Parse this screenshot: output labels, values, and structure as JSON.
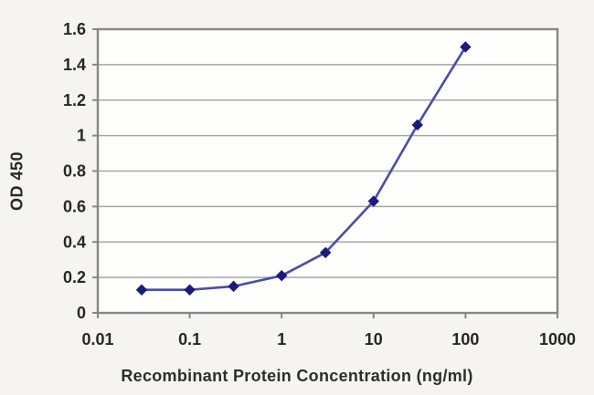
{
  "chart_data": {
    "type": "line",
    "title": "",
    "xlabel": "Recombinant Protein Concentration (ng/ml)",
    "ylabel": "OD 450",
    "x_scale": "log",
    "x": [
      0.03,
      0.1,
      0.3,
      1,
      3,
      10,
      30,
      100
    ],
    "y": [
      0.13,
      0.13,
      0.15,
      0.21,
      0.34,
      0.63,
      1.06,
      1.5
    ],
    "xlim": [
      0.01,
      1000
    ],
    "ylim": [
      0,
      1.6
    ],
    "x_ticks": [
      0.01,
      0.1,
      1,
      10,
      100,
      1000
    ],
    "x_tick_labels": [
      "0.01",
      "0.1",
      "1",
      "10",
      "100",
      "1000"
    ],
    "y_ticks": [
      0,
      0.2,
      0.4,
      0.6,
      0.8,
      1.0,
      1.2,
      1.4,
      1.6
    ],
    "y_tick_labels": [
      "0",
      "0.2",
      "0.4",
      "0.6",
      "0.8",
      "1",
      "1.2",
      "1.4",
      "1.6"
    ],
    "grid": "horizontal",
    "legend": "none",
    "marker": "diamond",
    "colors": {
      "line": "#4c4caa",
      "marker": "#1b1b7e",
      "grid": "#a6a6a6",
      "frame": "#868686",
      "tick_text": "#262626",
      "plot_bg": "#fefefdff",
      "page_bg": "#f5f4f2"
    }
  }
}
